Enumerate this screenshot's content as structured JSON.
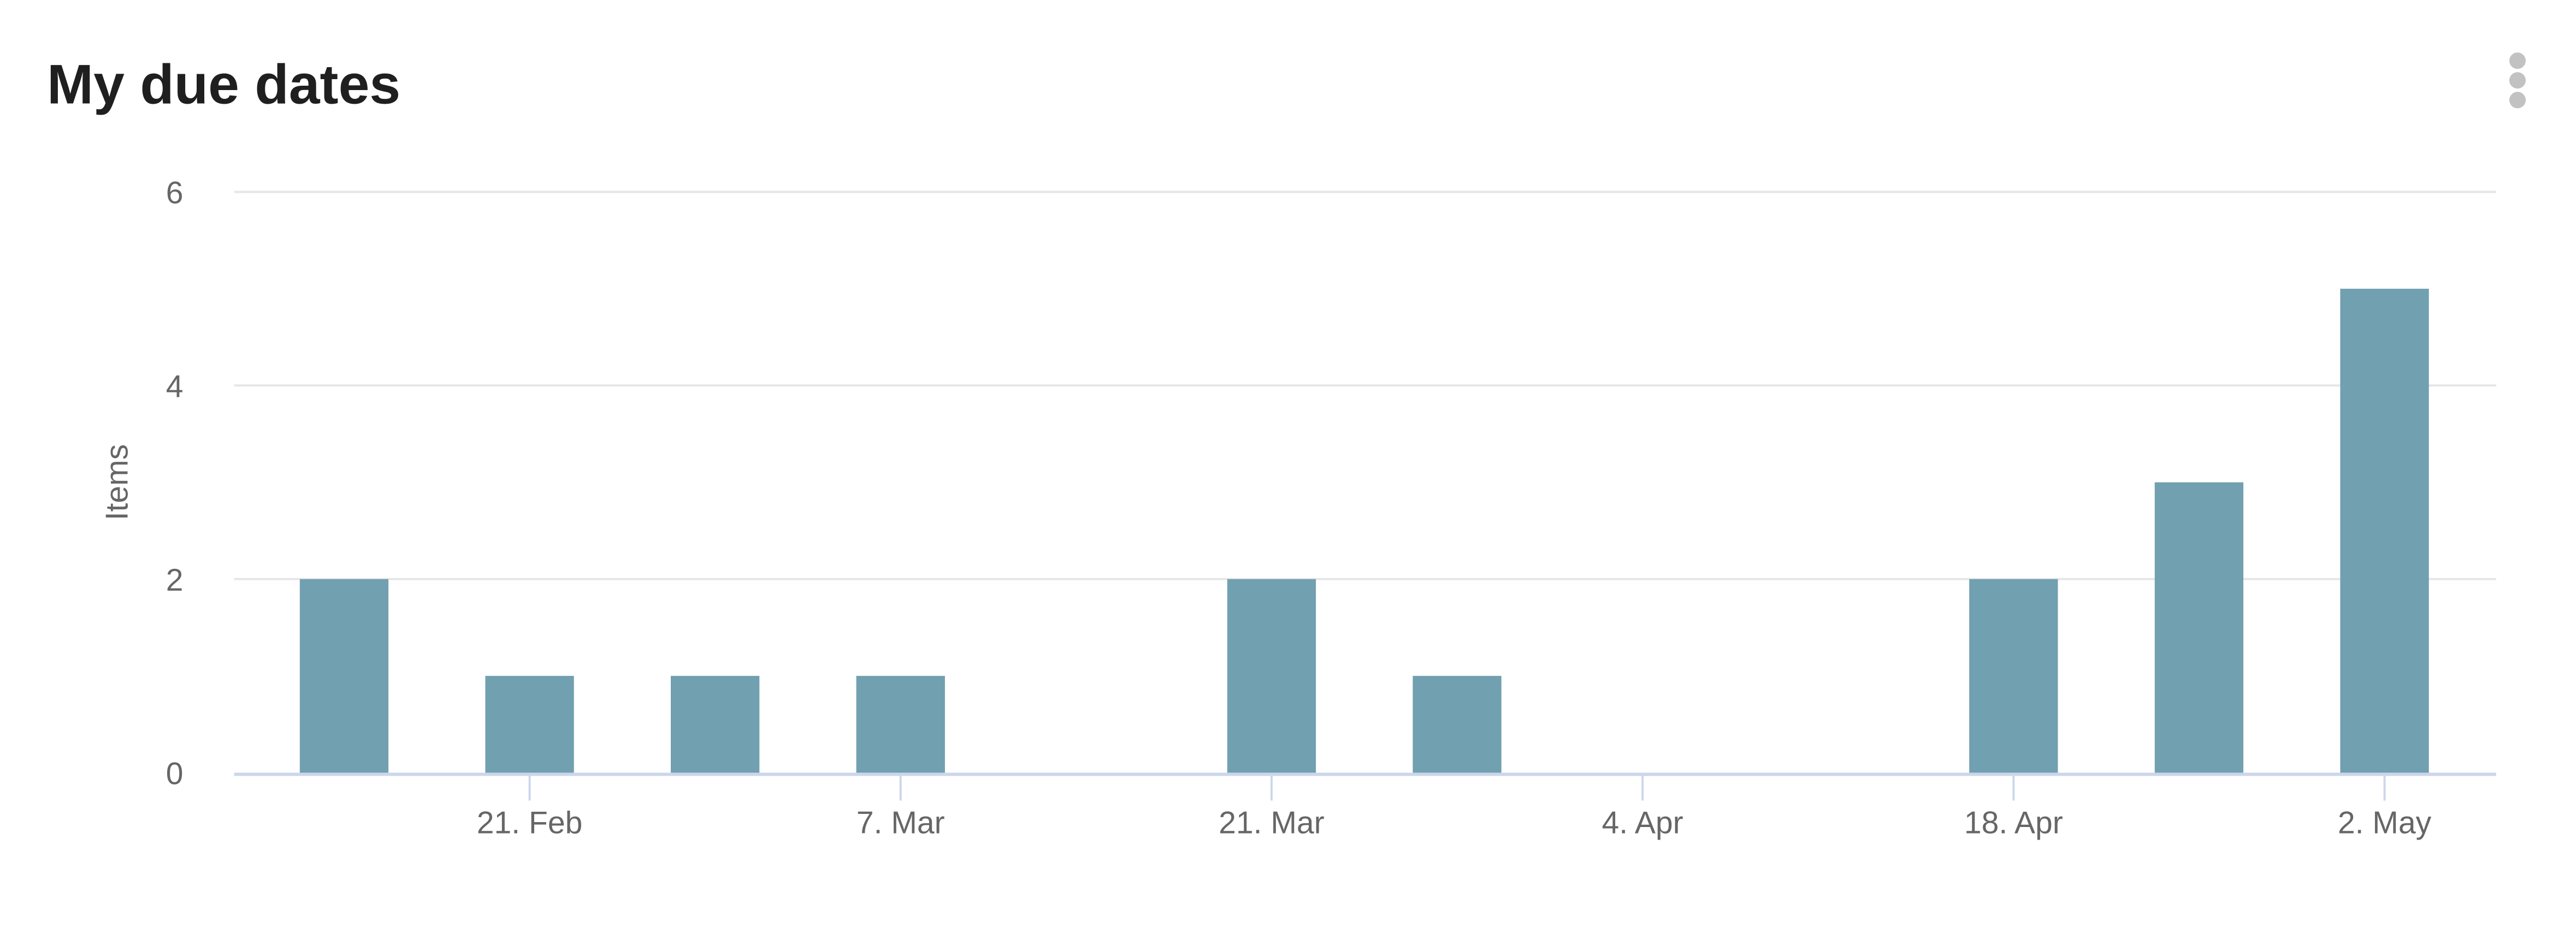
{
  "title": "My due dates",
  "menu_icon": "kebab-menu-icon",
  "chart_data": {
    "type": "bar",
    "title": "My due dates",
    "xlabel": "",
    "ylabel": "Items",
    "ylim": [
      0,
      6
    ],
    "yticks": [
      0,
      2,
      4,
      6
    ],
    "grid": true,
    "xticks": [
      {
        "date": "2022-02-21",
        "label": "21. Feb"
      },
      {
        "date": "2022-03-07",
        "label": "7. Mar"
      },
      {
        "date": "2022-03-21",
        "label": "21. Mar"
      },
      {
        "date": "2022-04-04",
        "label": "4. Apr"
      },
      {
        "date": "2022-04-18",
        "label": "18. Apr"
      },
      {
        "date": "2022-05-02",
        "label": "2. May"
      }
    ],
    "x": [
      "2022-02-14",
      "2022-02-21",
      "2022-02-28",
      "2022-03-07",
      "2022-03-21",
      "2022-03-28",
      "2022-04-18",
      "2022-04-25",
      "2022-05-02"
    ],
    "values": [
      2,
      1,
      1,
      1,
      2,
      1,
      2,
      3,
      5
    ],
    "color": "#71a0b0",
    "gridline_color": "#e6e6e6",
    "axis_color": "#ccd6eb"
  }
}
